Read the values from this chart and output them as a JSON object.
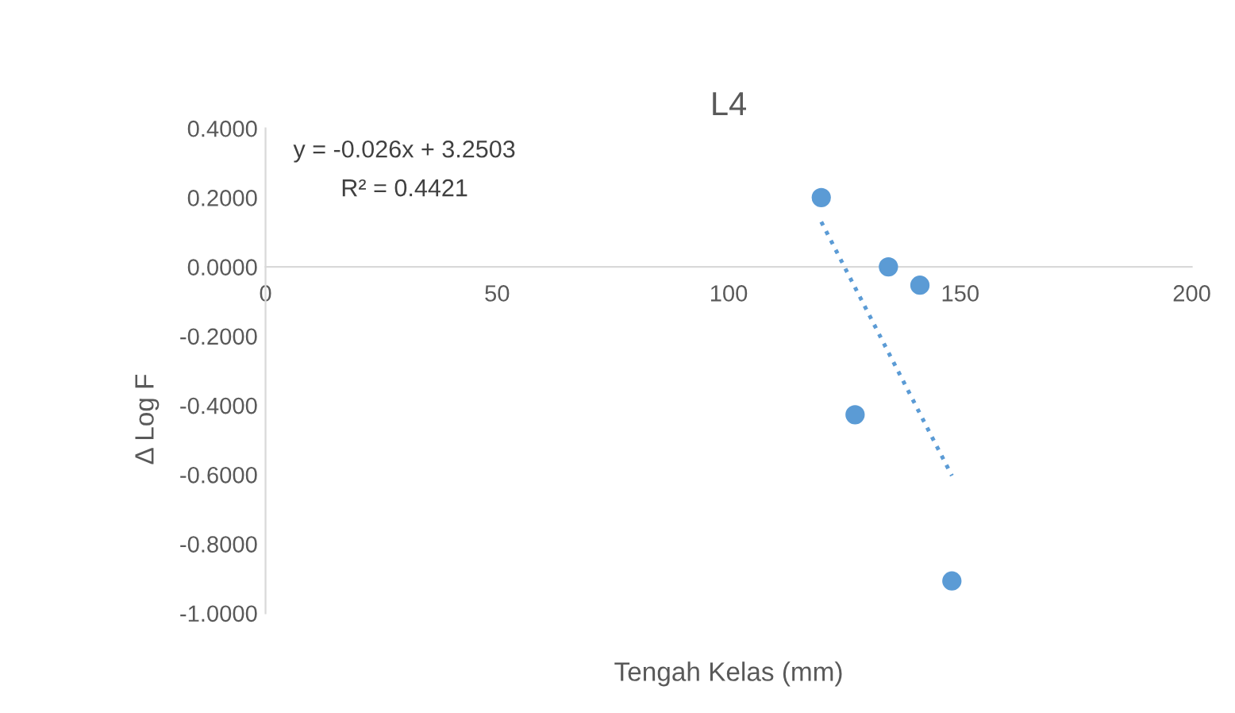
{
  "chart_data": {
    "type": "scatter",
    "title": "L4",
    "xlabel": "Tengah Kelas (mm)",
    "ylabel": "Δ Log F",
    "annotations": [
      {
        "text": "y = -0.026x + 3.2503"
      },
      {
        "text": "R² = 0.4421"
      }
    ],
    "series": [
      {
        "color": "#5b9bd5",
        "x": [
          120,
          134.5,
          141.3,
          127.3,
          148.2
        ],
        "values": [
          0.2,
          0.0,
          -0.053,
          -0.427,
          -0.907
        ],
        "marker": "circle"
      },
      {
        "type": "line",
        "color": "#5b9bd5",
        "x": [
          120,
          148.2
        ],
        "values": [
          0.13,
          -0.603
        ],
        "line_style": "dotted",
        "marker": "none"
      }
    ],
    "xlim": [
      0,
      200
    ],
    "xticks": [
      0,
      50,
      100,
      150,
      200
    ],
    "ylim": [
      -1.0,
      0.4
    ],
    "yticks": [
      {
        "value": -1.0,
        "label": "-1.0000"
      },
      {
        "value": -0.8,
        "label": "-0.8000"
      },
      {
        "value": -0.6,
        "label": "-0.6000"
      },
      {
        "value": -0.4,
        "label": "-0.4000"
      },
      {
        "value": -0.2,
        "label": "-0.2000"
      },
      {
        "value": 0.0,
        "label": "0.0000"
      },
      {
        "value": 0.2,
        "label": "0.2000"
      },
      {
        "value": 0.4,
        "label": "0.4000"
      }
    ],
    "grid": false,
    "legend": false
  }
}
